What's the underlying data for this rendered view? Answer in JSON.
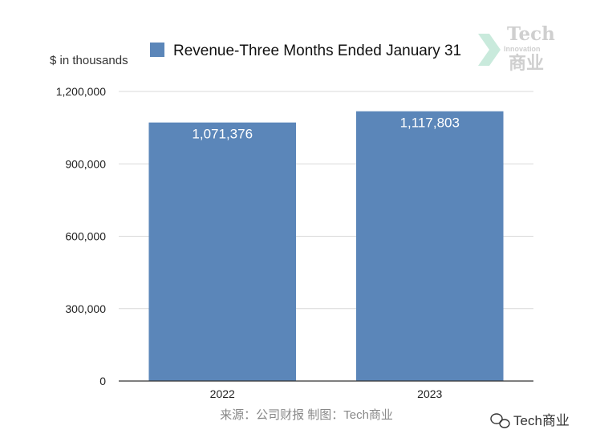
{
  "chart_data": {
    "type": "bar",
    "title": "",
    "ylabel": "$ in thousands",
    "xlabel": "",
    "categories": [
      "2022",
      "2023"
    ],
    "series": [
      {
        "name": "Revenue-Three Months Ended January 31",
        "values": [
          1071376,
          1117803
        ],
        "value_labels": [
          "1,071,376",
          "1,117,803"
        ],
        "color": "#5b86b9"
      }
    ],
    "ylim": [
      0,
      1200000
    ],
    "yticks": [
      0,
      300000,
      600000,
      900000,
      1200000
    ],
    "ytick_labels": [
      "0",
      "300,000",
      "600,000",
      "900,000",
      "1,200,000"
    ],
    "grid": true,
    "legend_position": "top"
  },
  "source_note": "来源：公司财报 制图：Tech商业",
  "watermark": {
    "line1": "Tech",
    "line2": "Innovation",
    "line3": "商业"
  },
  "wechat_badge": "Tech商业",
  "colors": {
    "bar": "#5b86b9",
    "grid": "#d9d9d9",
    "axis": "#333333",
    "watermark": "#cfcfcf",
    "watermark_accent": "#bfe6d6"
  }
}
